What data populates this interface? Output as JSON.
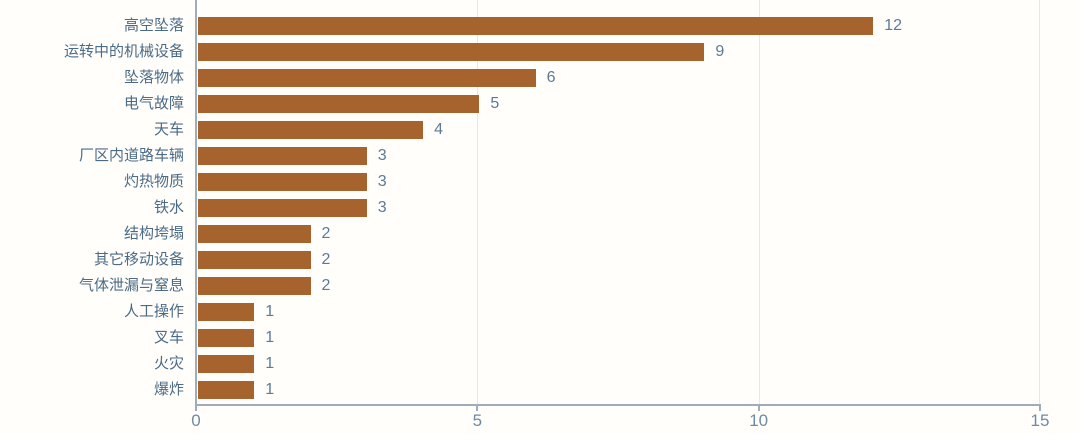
{
  "chart_data": {
    "type": "bar",
    "orientation": "horizontal",
    "title": "",
    "xlabel": "",
    "ylabel": "",
    "categories": [
      "高空坠落",
      "运转中的机械设备",
      "坠落物体",
      "电气故障",
      "天车",
      "厂区内道路车辆",
      "灼热物质",
      "铁水",
      "结构垮塌",
      "其它移动设备",
      "气体泄漏与窒息",
      "人工操作",
      "叉车",
      "火灾",
      "爆炸"
    ],
    "values": [
      12,
      9,
      6,
      5,
      4,
      3,
      3,
      3,
      2,
      2,
      2,
      1,
      1,
      1,
      1
    ],
    "xlim": [
      0,
      15
    ],
    "x_ticks": [
      "0",
      "5",
      "10",
      "15"
    ],
    "grid": true,
    "legend": null,
    "colors": {
      "bar": "#a7632e",
      "category_label": "#4c6b86",
      "value_label": "#5b7b95",
      "tick_label": "#6d8ba3",
      "axis": "#9fadb9",
      "gridline": "#e4e8eb",
      "background": "#fffefb"
    }
  }
}
